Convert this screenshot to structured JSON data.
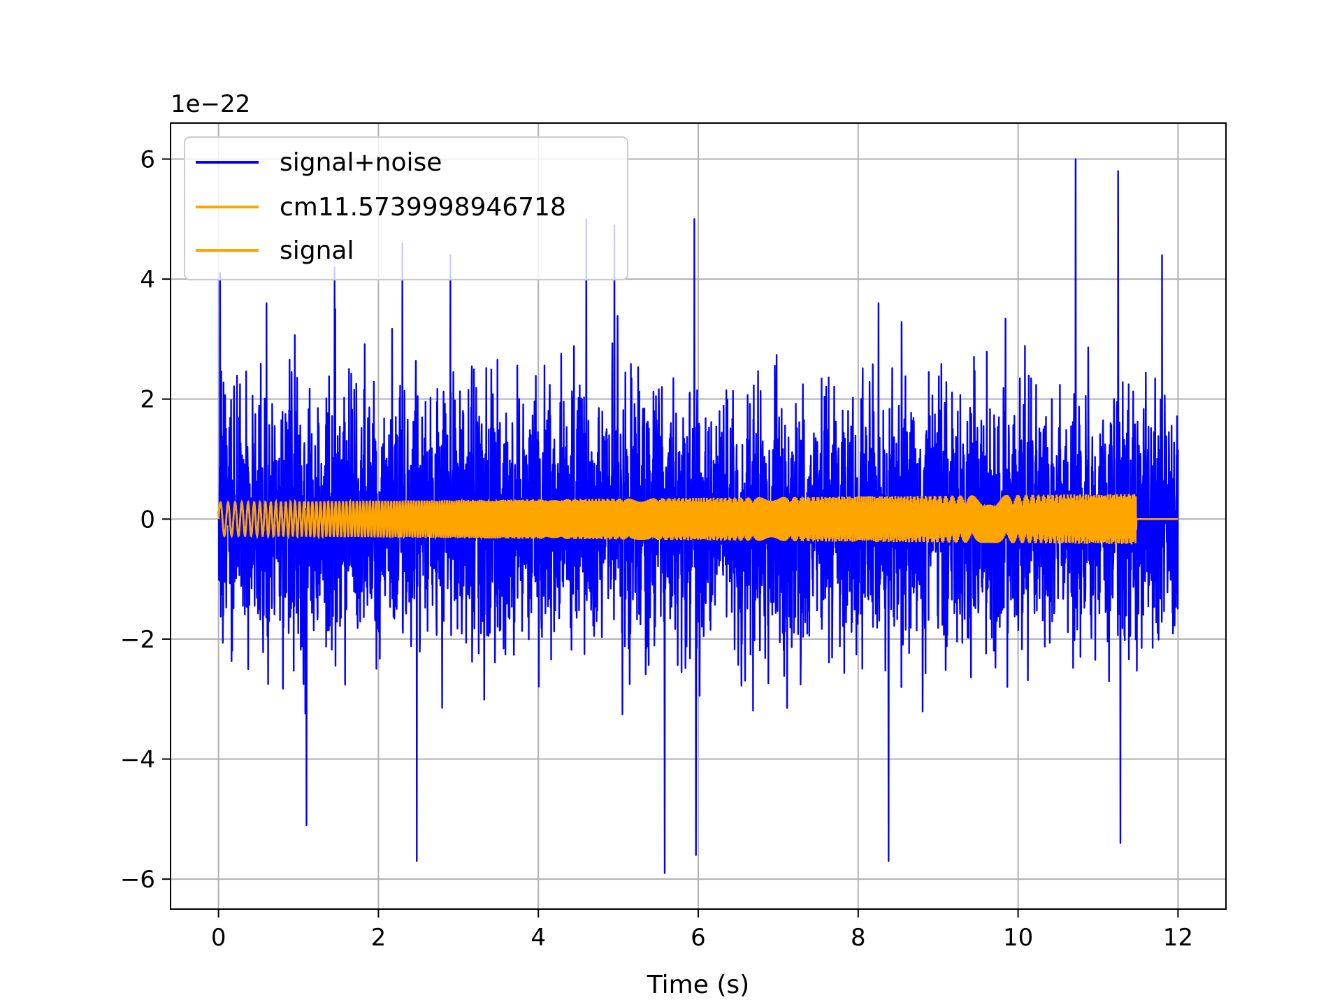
{
  "chart_data": {
    "type": "line",
    "title": "",
    "xlabel": "Time (s)",
    "ylabel": "",
    "y_offset_label": "1e−22",
    "xlim": [
      -0.6,
      12.6
    ],
    "ylim": [
      -6.5,
      6.6
    ],
    "x_ticks": [
      0,
      2,
      4,
      6,
      8,
      10,
      12
    ],
    "y_ticks": [
      -6,
      -4,
      -2,
      0,
      2,
      4,
      6
    ],
    "x_tick_labels": [
      "0",
      "2",
      "4",
      "6",
      "8",
      "10",
      "12"
    ],
    "y_tick_labels": [
      "−6",
      "−4",
      "−2",
      "0",
      "2",
      "4",
      "6"
    ],
    "grid": true,
    "legend_position": "top-left",
    "series": [
      {
        "name": "signal+noise",
        "color": "#0000ff",
        "x_range": [
          0,
          12
        ],
        "envelope_typical": [
          -3,
          3
        ],
        "peaks": [
          {
            "x": 0.02,
            "y": 4.1
          },
          {
            "x": 0.6,
            "y": 3.6
          },
          {
            "x": 1.1,
            "y": -5.1
          },
          {
            "x": 1.45,
            "y": 4.2
          },
          {
            "x": 2.3,
            "y": 4.6
          },
          {
            "x": 2.48,
            "y": -5.7
          },
          {
            "x": 2.9,
            "y": 4.4
          },
          {
            "x": 4.6,
            "y": 5.0
          },
          {
            "x": 4.95,
            "y": 4.9
          },
          {
            "x": 5.58,
            "y": -5.9
          },
          {
            "x": 5.95,
            "y": 5.0
          },
          {
            "x": 5.97,
            "y": -5.6
          },
          {
            "x": 8.38,
            "y": -5.7
          },
          {
            "x": 10.72,
            "y": 6.0
          },
          {
            "x": 11.25,
            "y": 5.8
          },
          {
            "x": 11.28,
            "y": -5.4
          },
          {
            "x": 11.8,
            "y": 4.4
          }
        ]
      },
      {
        "name": "cm11.5739998946718",
        "color": "#ffa500",
        "x_range": [
          0,
          11.48
        ],
        "amplitude_start": 0.28,
        "amplitude_end": 0.42,
        "flat_after": [
          11.48,
          12.0
        ]
      },
      {
        "name": "signal",
        "color": "#ffa500",
        "x_range": [
          0,
          11.48
        ],
        "amplitude_start": 0.28,
        "amplitude_end": 0.42
      }
    ]
  }
}
